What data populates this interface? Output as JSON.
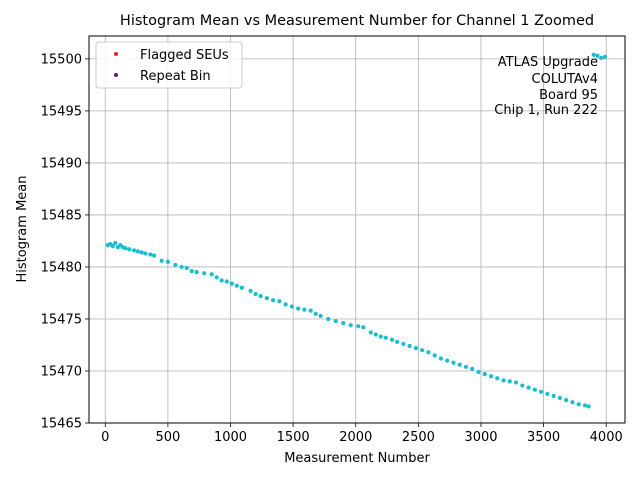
{
  "chart_data": {
    "type": "scatter",
    "title": "Histogram Mean vs Measurement Number for Channel 1 Zoomed",
    "xlabel": "Measurement Number",
    "ylabel": "Histogram Mean",
    "xlim": [
      -130,
      4150
    ],
    "ylim": [
      15465,
      15502.2
    ],
    "xticks": [
      0,
      500,
      1000,
      1500,
      2000,
      2500,
      3000,
      3500,
      4000
    ],
    "yticks": [
      15465,
      15470,
      15475,
      15480,
      15485,
      15490,
      15495,
      15500
    ],
    "grid": true,
    "legend_position": "top-left",
    "legend": [
      {
        "name": "Flagged SEUs",
        "color": "#d62728"
      },
      {
        "name": "Repeat Bin",
        "color": "#5e1e66"
      }
    ],
    "annotation": [
      "ATLAS Upgrade",
      "COLUTAv4",
      "Board 95",
      "Chip 1, Run 222"
    ],
    "main_color": "#17becf",
    "series": [
      {
        "points": [
          [
            20,
            15482.1
          ],
          [
            40,
            15482.2
          ],
          [
            60,
            15482.0
          ],
          [
            80,
            15482.3
          ],
          [
            100,
            15481.9
          ],
          [
            120,
            15482.1
          ],
          [
            140,
            15481.9
          ],
          [
            160,
            15481.8
          ],
          [
            190,
            15481.7
          ],
          [
            230,
            15481.6
          ],
          [
            260,
            15481.5
          ],
          [
            290,
            15481.4
          ],
          [
            320,
            15481.3
          ],
          [
            360,
            15481.2
          ],
          [
            390,
            15481.1
          ],
          [
            450,
            15480.6
          ],
          [
            500,
            15480.5
          ],
          [
            560,
            15480.2
          ],
          [
            610,
            15480.0
          ],
          [
            650,
            15479.9
          ],
          [
            690,
            15479.6
          ],
          [
            730,
            15479.5
          ],
          [
            790,
            15479.4
          ],
          [
            850,
            15479.3
          ],
          [
            890,
            15479.0
          ],
          [
            930,
            15478.7
          ],
          [
            970,
            15478.6
          ],
          [
            1010,
            15478.4
          ],
          [
            1050,
            15478.2
          ],
          [
            1090,
            15478.0
          ],
          [
            1160,
            15477.7
          ],
          [
            1200,
            15477.4
          ],
          [
            1240,
            15477.2
          ],
          [
            1290,
            15477.0
          ],
          [
            1340,
            15476.8
          ],
          [
            1390,
            15476.7
          ],
          [
            1440,
            15476.4
          ],
          [
            1490,
            15476.2
          ],
          [
            1540,
            15476.0
          ],
          [
            1590,
            15475.9
          ],
          [
            1640,
            15475.8
          ],
          [
            1680,
            15475.5
          ],
          [
            1720,
            15475.3
          ],
          [
            1780,
            15475.0
          ],
          [
            1840,
            15474.8
          ],
          [
            1900,
            15474.6
          ],
          [
            1960,
            15474.4
          ],
          [
            2020,
            15474.3
          ],
          [
            2060,
            15474.2
          ],
          [
            2120,
            15473.7
          ],
          [
            2160,
            15473.5
          ],
          [
            2200,
            15473.3
          ],
          [
            2240,
            15473.2
          ],
          [
            2290,
            15473.0
          ],
          [
            2330,
            15472.8
          ],
          [
            2380,
            15472.6
          ],
          [
            2430,
            15472.4
          ],
          [
            2480,
            15472.2
          ],
          [
            2530,
            15472.0
          ],
          [
            2580,
            15471.8
          ],
          [
            2630,
            15471.5
          ],
          [
            2680,
            15471.2
          ],
          [
            2730,
            15471.0
          ],
          [
            2780,
            15470.8
          ],
          [
            2830,
            15470.6
          ],
          [
            2880,
            15470.4
          ],
          [
            2930,
            15470.2
          ],
          [
            2980,
            15469.9
          ],
          [
            3030,
            15469.7
          ],
          [
            3080,
            15469.5
          ],
          [
            3130,
            15469.3
          ],
          [
            3180,
            15469.1
          ],
          [
            3230,
            15469.0
          ],
          [
            3280,
            15468.9
          ],
          [
            3330,
            15468.6
          ],
          [
            3380,
            15468.4
          ],
          [
            3430,
            15468.2
          ],
          [
            3480,
            15468.0
          ],
          [
            3530,
            15467.8
          ],
          [
            3580,
            15467.6
          ],
          [
            3630,
            15467.4
          ],
          [
            3680,
            15467.2
          ],
          [
            3730,
            15467.0
          ],
          [
            3780,
            15466.8
          ],
          [
            3830,
            15466.7
          ],
          [
            3860,
            15466.6
          ],
          [
            3900,
            15500.4
          ],
          [
            3930,
            15500.3
          ],
          [
            3960,
            15500.1
          ],
          [
            3990,
            15500.2
          ]
        ]
      }
    ]
  }
}
